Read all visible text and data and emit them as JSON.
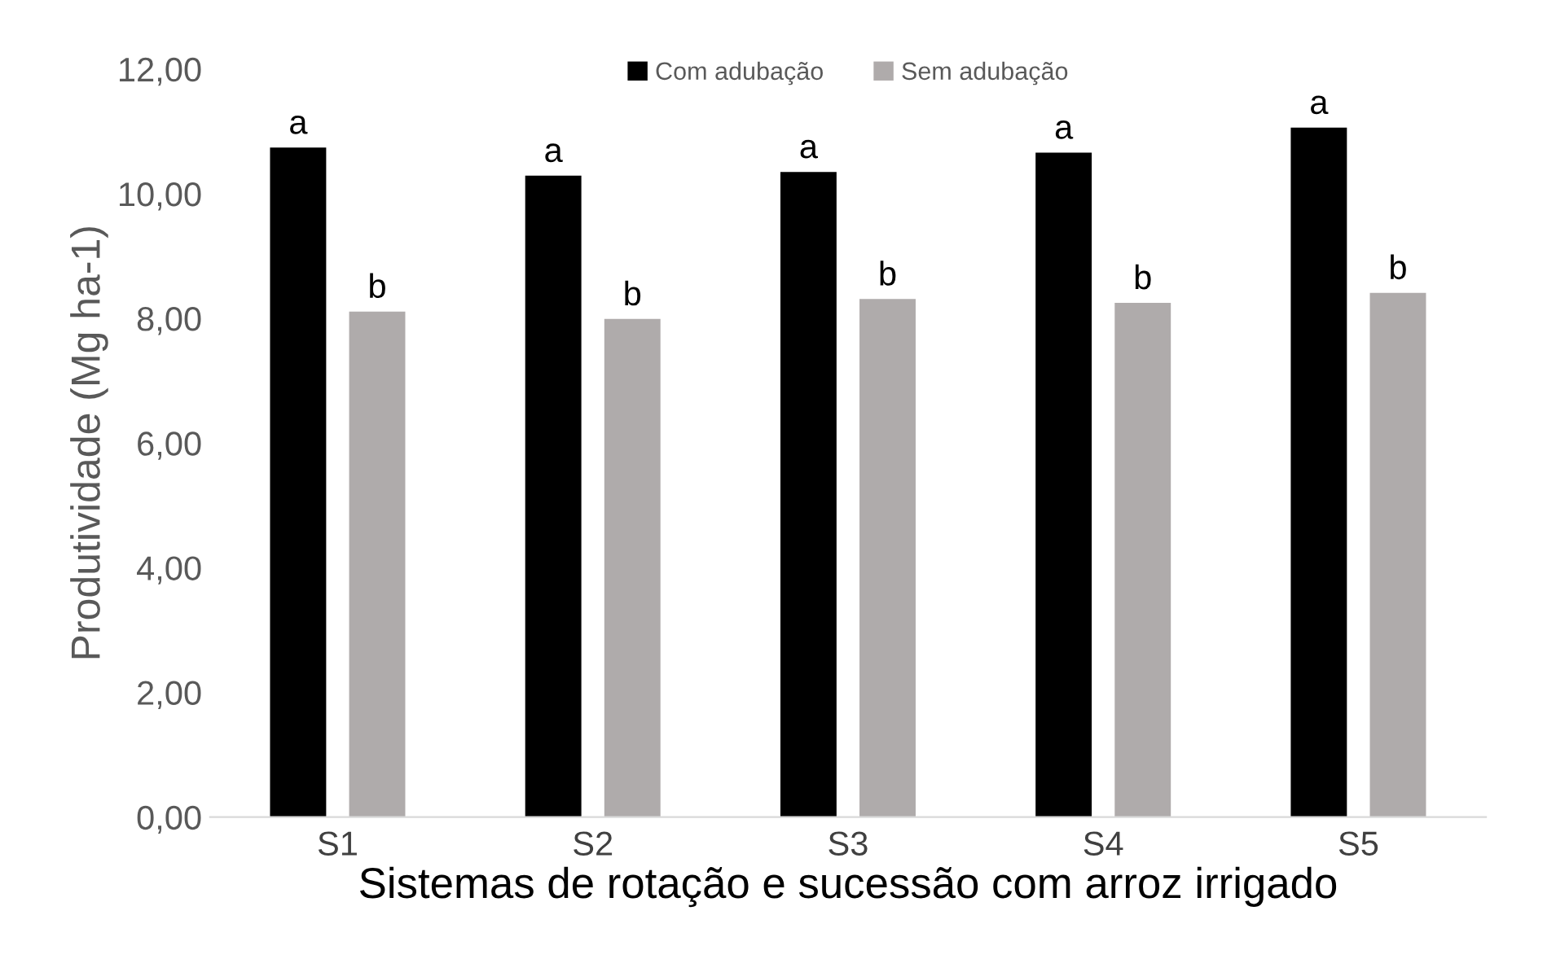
{
  "chart_data": {
    "type": "bar",
    "xlabel": "Sistemas de rotação e sucessão com arroz irrigado",
    "ylabel": "Produtividade (Mg ha-1)",
    "categories": [
      "S1",
      "S2",
      "S3",
      "S4",
      "S5"
    ],
    "series": [
      {
        "name": "Com adubação",
        "color": "#000000",
        "values": [
          10.74,
          10.29,
          10.35,
          10.66,
          11.06
        ],
        "value_labels": [
          "a",
          "a",
          "a",
          "a",
          "a"
        ]
      },
      {
        "name": "Sem adubação",
        "color": "#afabab",
        "values": [
          8.11,
          7.99,
          8.31,
          8.25,
          8.41
        ],
        "value_labels": [
          "b",
          "b",
          "b",
          "b",
          "b"
        ]
      }
    ],
    "ylim": [
      0,
      12
    ],
    "yticks": [
      {
        "value": 0,
        "label": "0,00"
      },
      {
        "value": 2,
        "label": "2,00"
      },
      {
        "value": 4,
        "label": "4,00"
      },
      {
        "value": 6,
        "label": "6,00"
      },
      {
        "value": 8,
        "label": "8,00"
      },
      {
        "value": 10,
        "label": "10,00"
      },
      {
        "value": 12,
        "label": "12,00"
      }
    ],
    "legend": "top",
    "grid": false
  }
}
